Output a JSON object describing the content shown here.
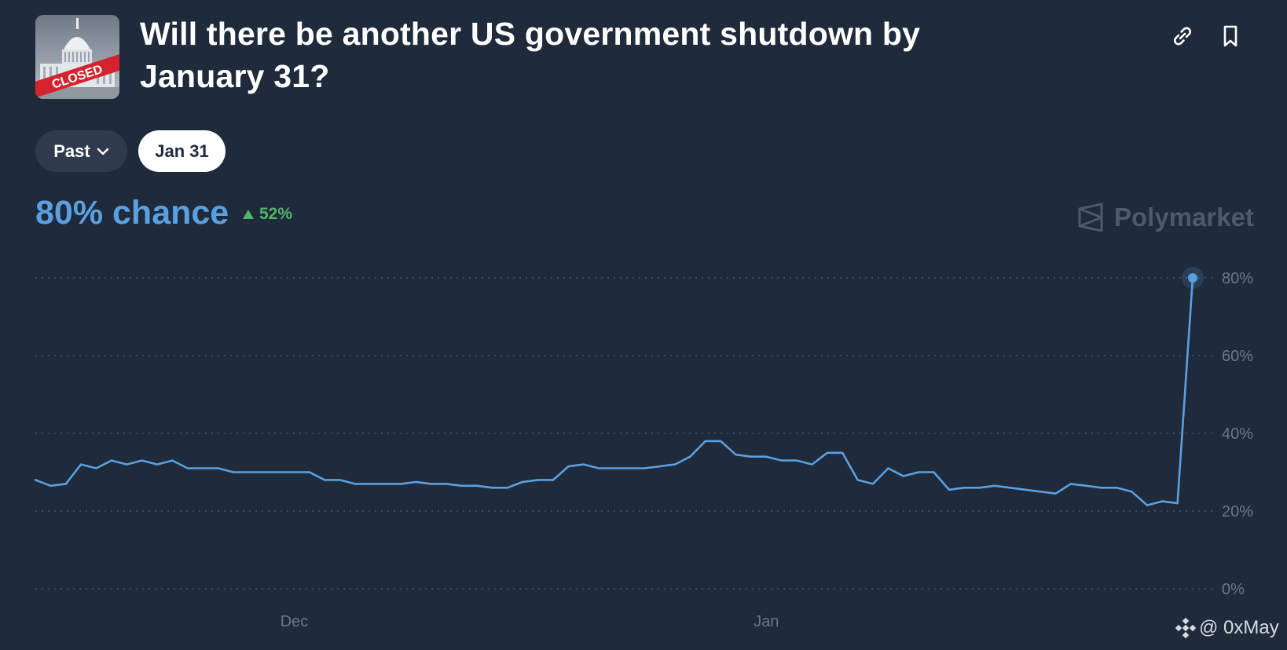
{
  "header": {
    "title": "Will there be another US government shutdown by January 31?",
    "thumbnail_stamp": "CLOSED"
  },
  "filters": {
    "past_label": "Past",
    "selected_label": "Jan 31"
  },
  "summary": {
    "chance_text": "80% chance",
    "delta_text": "52%",
    "delta_direction": "up"
  },
  "brand": {
    "name": "Polymarket"
  },
  "watermark": {
    "text": "@ 0xMay"
  },
  "colors": {
    "background": "#1f2a3b",
    "accent": "#5aa0e0",
    "positive": "#54b36b"
  },
  "chart_data": {
    "type": "line",
    "x_range": [
      "2024-11-14",
      "2025-01-29"
    ],
    "ylim": [
      0,
      80
    ],
    "y_ticks": [
      0,
      20,
      40,
      60,
      80
    ],
    "y_tick_labels": [
      "0%",
      "20%",
      "40%",
      "60%",
      "80%"
    ],
    "x_ticks": [
      {
        "date": "2024-12-01",
        "label": "Dec"
      },
      {
        "date": "2025-01-01",
        "label": "Jan"
      }
    ],
    "grid": true,
    "series": [
      {
        "color": "#5aa0e0",
        "points": [
          [
            "2024-11-14",
            28
          ],
          [
            "2024-11-15",
            26.5
          ],
          [
            "2024-11-16",
            27
          ],
          [
            "2024-11-17",
            32
          ],
          [
            "2024-11-18",
            31
          ],
          [
            "2024-11-19",
            33
          ],
          [
            "2024-11-20",
            32
          ],
          [
            "2024-11-21",
            33
          ],
          [
            "2024-11-22",
            32
          ],
          [
            "2024-11-23",
            33
          ],
          [
            "2024-11-24",
            31
          ],
          [
            "2024-11-25",
            31
          ],
          [
            "2024-11-26",
            31
          ],
          [
            "2024-11-27",
            30
          ],
          [
            "2024-11-28",
            30
          ],
          [
            "2024-11-29",
            30
          ],
          [
            "2024-11-30",
            30
          ],
          [
            "2024-12-01",
            30
          ],
          [
            "2024-12-02",
            30
          ],
          [
            "2024-12-03",
            28
          ],
          [
            "2024-12-04",
            28
          ],
          [
            "2024-12-05",
            27
          ],
          [
            "2024-12-06",
            27
          ],
          [
            "2024-12-07",
            27
          ],
          [
            "2024-12-08",
            27
          ],
          [
            "2024-12-09",
            27.5
          ],
          [
            "2024-12-10",
            27
          ],
          [
            "2024-12-11",
            27
          ],
          [
            "2024-12-12",
            26.5
          ],
          [
            "2024-12-13",
            26.5
          ],
          [
            "2024-12-14",
            26
          ],
          [
            "2024-12-15",
            26
          ],
          [
            "2024-12-16",
            27.5
          ],
          [
            "2024-12-17",
            28
          ],
          [
            "2024-12-18",
            28
          ],
          [
            "2024-12-19",
            31.5
          ],
          [
            "2024-12-20",
            32
          ],
          [
            "2024-12-21",
            31
          ],
          [
            "2024-12-22",
            31
          ],
          [
            "2024-12-23",
            31
          ],
          [
            "2024-12-24",
            31
          ],
          [
            "2024-12-25",
            31.5
          ],
          [
            "2024-12-26",
            32
          ],
          [
            "2024-12-27",
            34
          ],
          [
            "2024-12-28",
            38
          ],
          [
            "2024-12-29",
            38
          ],
          [
            "2024-12-30",
            34.5
          ],
          [
            "2024-12-31",
            34
          ],
          [
            "2025-01-01",
            34
          ],
          [
            "2025-01-02",
            33
          ],
          [
            "2025-01-03",
            33
          ],
          [
            "2025-01-04",
            32
          ],
          [
            "2025-01-05",
            35
          ],
          [
            "2025-01-06",
            35
          ],
          [
            "2025-01-07",
            28
          ],
          [
            "2025-01-08",
            27
          ],
          [
            "2025-01-09",
            31
          ],
          [
            "2025-01-10",
            29
          ],
          [
            "2025-01-11",
            30
          ],
          [
            "2025-01-12",
            30
          ],
          [
            "2025-01-13",
            25.5
          ],
          [
            "2025-01-14",
            26
          ],
          [
            "2025-01-15",
            26
          ],
          [
            "2025-01-16",
            26.5
          ],
          [
            "2025-01-17",
            26
          ],
          [
            "2025-01-18",
            25.5
          ],
          [
            "2025-01-19",
            25
          ],
          [
            "2025-01-20",
            24.5
          ],
          [
            "2025-01-21",
            27
          ],
          [
            "2025-01-22",
            26.5
          ],
          [
            "2025-01-23",
            26
          ],
          [
            "2025-01-24",
            26
          ],
          [
            "2025-01-25",
            25
          ],
          [
            "2025-01-26",
            21.5
          ],
          [
            "2025-01-27",
            22.5
          ],
          [
            "2025-01-28",
            22
          ],
          [
            "2025-01-29",
            80
          ]
        ]
      }
    ]
  }
}
